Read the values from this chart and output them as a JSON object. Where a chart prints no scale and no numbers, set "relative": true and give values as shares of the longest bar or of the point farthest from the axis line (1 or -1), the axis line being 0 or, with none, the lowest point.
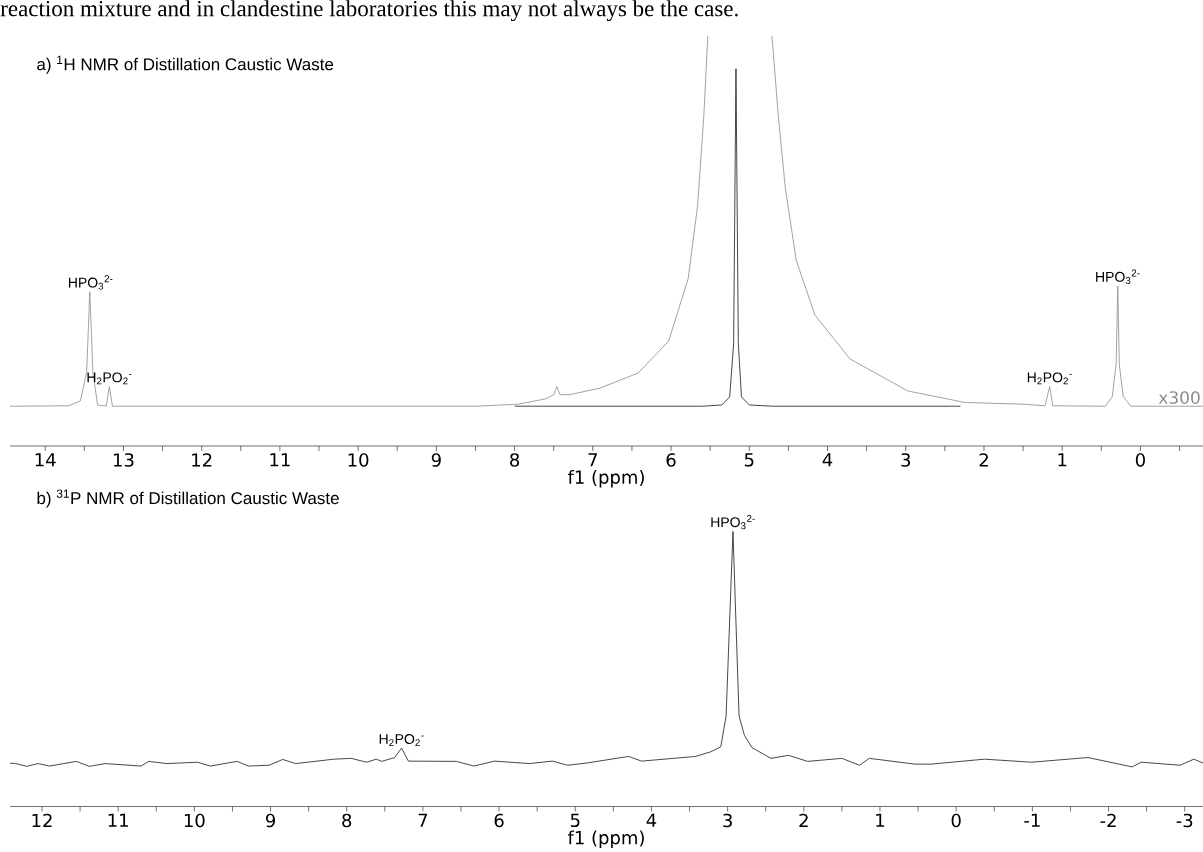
{
  "chart_data": [
    {
      "type": "line",
      "relative": true,
      "title": "a) $^{1}$H NMR of Distillation Caustic Waste",
      "xlabel": "f1 (ppm)",
      "xlim": [
        14.45,
        -0.8
      ],
      "xticks": [
        {
          "value": -0.5,
          "label": null
        },
        0,
        {
          "value": 0.5,
          "label": null
        },
        1,
        {
          "value": 1.5,
          "label": null
        },
        2,
        {
          "value": 2.5,
          "label": null
        },
        3,
        {
          "value": 3.5,
          "label": null
        },
        4,
        {
          "value": 4.5,
          "label": null
        },
        5,
        {
          "value": 5.5,
          "label": null
        },
        6,
        {
          "value": 6.5,
          "label": null
        },
        7,
        {
          "value": 7.5,
          "label": null
        },
        8,
        {
          "value": 8.5,
          "label": null
        },
        9,
        {
          "value": 9.5,
          "label": null
        },
        10,
        {
          "value": 10.5,
          "label": null
        },
        11,
        {
          "value": 11.5,
          "label": null
        },
        12,
        {
          "value": 12.5,
          "label": null
        },
        13,
        {
          "value": 13.5,
          "label": null
        },
        14
      ],
      "annotations": [
        "reaction mixture and in clandestine laboratories this may not always be the case.",
        {
          "text": "HPO$_{3}$$^{2-}$",
          "x": 13.42,
          "y": 0.376
        },
        {
          "text": "H$_{2}$PO$_{2}$$^{-}$",
          "x": 13.18,
          "y": 0.145
        },
        {
          "text": "H$_{2}$PO$_{2}$$^{-}$",
          "x": 1.16,
          "y": 0.145
        },
        {
          "text": "HPO$_{3}$$^{2-}$",
          "x": 0.29,
          "y": 0.39
        }
      ],
      "series": [
        {
          "name": "x300",
          "color": "#8c8c8c",
          "x": [
            14.45,
            13.7,
            13.55,
            13.47,
            13.43,
            13.39,
            13.33,
            13.22,
            13.18,
            13.14,
            12,
            10,
            8.5,
            7.95,
            7.6,
            7.5,
            7.46,
            7.42,
            7.3,
            6.91,
            6.42,
            6.03,
            5.78,
            5.66,
            5.58,
            5.53,
            5.1,
            4.71,
            4.63,
            4.54,
            4.4,
            4.16,
            3.71,
            2.97,
            2.24,
            1.5,
            1.22,
            1.16,
            1.12,
            0.45,
            0.36,
            0.31,
            0.29,
            0.27,
            0.22,
            0.12,
            -0.8
          ],
          "values": [
            0.097,
            0.098,
            0.11,
            0.18,
            0.376,
            0.18,
            0.1,
            0.097,
            0.145,
            0.097,
            0.097,
            0.097,
            0.097,
            0.102,
            0.115,
            0.125,
            0.145,
            0.125,
            0.125,
            0.141,
            0.178,
            0.256,
            0.409,
            0.587,
            0.808,
            1.0,
            null,
            1.0,
            0.808,
            0.63,
            0.453,
            0.319,
            0.212,
            0.134,
            0.106,
            0.102,
            0.098,
            0.145,
            0.098,
            0.097,
            0.12,
            0.2,
            0.39,
            0.2,
            0.12,
            0.097,
            0.097
          ]
        },
        {
          "color": "#1a1a1a",
          "x": [
            8.0,
            5.6,
            5.35,
            5.25,
            5.2,
            5.17,
            5.14,
            5.1,
            5.0,
            4.7,
            2.3
          ],
          "values": [
            0.097,
            0.097,
            0.1,
            0.12,
            0.25,
            0.92,
            0.25,
            0.12,
            0.1,
            0.097,
            0.097
          ]
        }
      ]
    },
    {
      "type": "line",
      "relative": true,
      "title": "b) $^{31}$P NMR of Distillation Caustic Waste",
      "xlabel": "f1 (ppm)",
      "xlim": [
        12.42,
        -3.24
      ],
      "xticks": [
        -3,
        {
          "value": -2.5,
          "label": null
        },
        -2,
        {
          "value": -1.5,
          "label": null
        },
        -1,
        {
          "value": -0.5,
          "label": null
        },
        0,
        {
          "value": 0.5,
          "label": null
        },
        1,
        {
          "value": 1.5,
          "label": null
        },
        2,
        {
          "value": 2.5,
          "label": null
        },
        3,
        {
          "value": 3.5,
          "label": null
        },
        4,
        {
          "value": 4.5,
          "label": null
        },
        5,
        {
          "value": 5.5,
          "label": null
        },
        6,
        {
          "value": 6.5,
          "label": null
        },
        7,
        {
          "value": 7.5,
          "label": null
        },
        8,
        {
          "value": 8.5,
          "label": null
        },
        9,
        {
          "value": 9.5,
          "label": null
        },
        10,
        {
          "value": 10.5,
          "label": null
        },
        11,
        {
          "value": 11.5,
          "label": null
        },
        12
      ],
      "annotations": [
        {
          "text": "H$_{2}$PO$_{2}$$^{-}$",
          "x": 7.28,
          "y": 0.212
        },
        {
          "text": "HPO$_{3}$$^{2-}$",
          "x": 2.93,
          "y": 1.0
        }
      ],
      "series": [
        {
          "color": "#1a1a1a",
          "x": [
            12.42,
            12.36,
            12.2,
            12.05,
            11.9,
            11.55,
            11.38,
            11.17,
            10.7,
            10.6,
            10.36,
            9.96,
            9.79,
            9.44,
            9.29,
            9.02,
            8.84,
            8.67,
            8.17,
            7.94,
            7.74,
            7.61,
            7.54,
            7.37,
            7.28,
            7.19,
            6.56,
            6.33,
            6.06,
            5.6,
            5.3,
            5.1,
            4.85,
            4.3,
            4.13,
            3.42,
            3.22,
            3.09,
            3.02,
            2.93,
            2.85,
            2.78,
            2.68,
            2.43,
            2.2,
            1.95,
            1.5,
            1.27,
            1.14,
            0.54,
            0.33,
            -0.37,
            -0.99,
            -1.73,
            -2.31,
            -2.43,
            -2.94,
            -3.12,
            -3.24
          ],
          "values": [
            0.157,
            0.157,
            0.146,
            0.156,
            0.147,
            0.164,
            0.146,
            0.156,
            0.147,
            0.164,
            0.156,
            0.161,
            0.147,
            0.164,
            0.147,
            0.15,
            0.171,
            0.156,
            0.172,
            0.175,
            0.161,
            0.172,
            0.164,
            0.178,
            0.212,
            0.165,
            0.164,
            0.147,
            0.165,
            0.156,
            0.165,
            0.15,
            0.158,
            0.182,
            0.165,
            0.182,
            0.199,
            0.217,
            0.329,
            1.0,
            0.329,
            0.259,
            0.214,
            0.175,
            0.186,
            0.164,
            0.175,
            0.15,
            0.175,
            0.154,
            0.154,
            0.172,
            0.161,
            0.178,
            0.144,
            0.161,
            0.15,
            0.172,
            0.158
          ]
        }
      ]
    }
  ]
}
